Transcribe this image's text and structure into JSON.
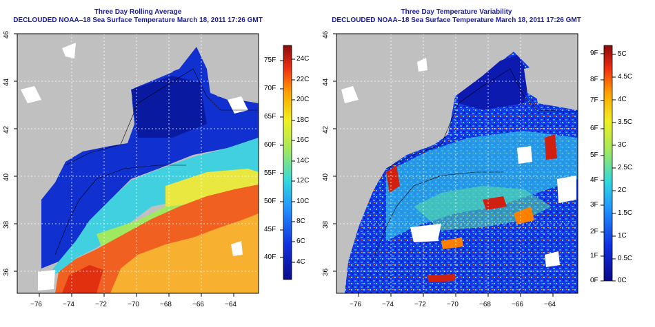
{
  "left_panel": {
    "title": "Three Day Rolling Average",
    "subtitle": "DECLOUDED NOAA–18 Sea Surface Temperature March 18, 2011 17:26 GMT",
    "x_ticks": [
      "−76",
      "−74",
      "−72",
      "−70",
      "−68",
      "−66",
      "−64"
    ],
    "y_ticks": [
      "36",
      "38",
      "40",
      "42",
      "44",
      "46"
    ],
    "colorbar_f": [
      "75F",
      "70F",
      "65F",
      "60F",
      "55F",
      "50F",
      "45F",
      "40F"
    ],
    "colorbar_c": [
      "24C",
      "22C",
      "20C",
      "18C",
      "16C",
      "14C",
      "12C",
      "10C",
      "8C",
      "6C",
      "4C"
    ]
  },
  "right_panel": {
    "title": "Three Day Temperature Variability",
    "subtitle": "DECLOUDED NOAA–18 Sea Surface Temperature March 18, 2011 17:26 GMT",
    "x_ticks": [
      "−76",
      "−74",
      "−72",
      "−70",
      "−68",
      "−66",
      "−64"
    ],
    "y_ticks": [
      "36",
      "38",
      "40",
      "42",
      "44",
      "46"
    ],
    "colorbar_f": [
      "9F",
      "8F",
      "7F",
      "6F",
      "5F",
      "4F",
      "3F",
      "2F",
      "1F",
      "0F"
    ],
    "colorbar_c": [
      "5C",
      "4.5C",
      "4C",
      "3.5C",
      "3C",
      "2.5C",
      "2C",
      "1.5C",
      "1C",
      "0.5C",
      "0C"
    ]
  },
  "colors": {
    "title": "#1a1aa6",
    "land": "#c0c0c0",
    "cold": "#0a1a9e",
    "warm": "#d02010"
  }
}
